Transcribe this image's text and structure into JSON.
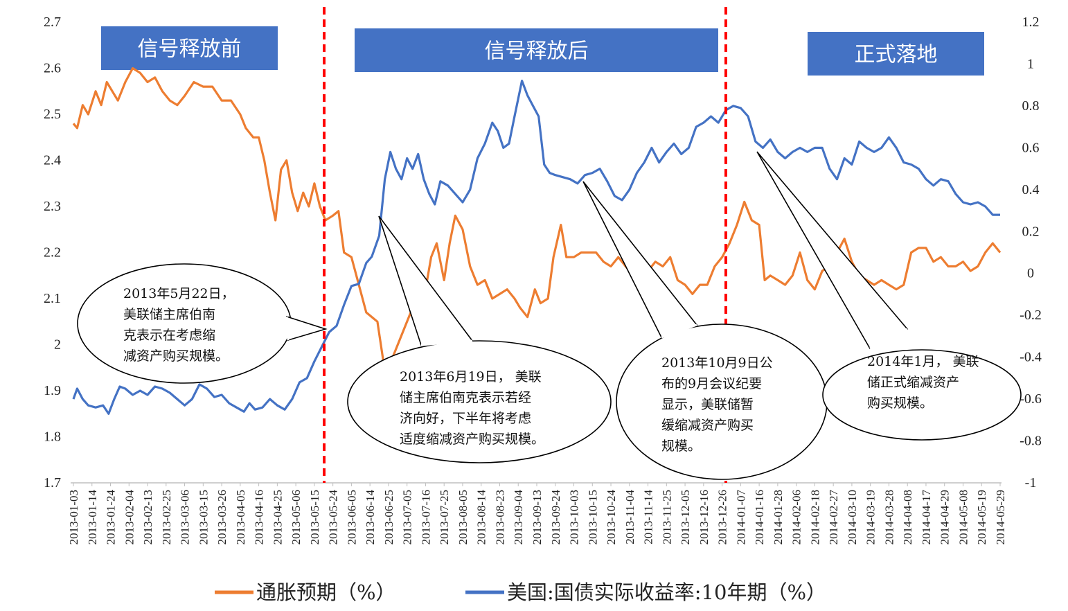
{
  "chart_data": {
    "type": "line",
    "title": "",
    "left_axis": {
      "min": 1.7,
      "max": 2.7,
      "ticks": [
        "2.7",
        "2.6",
        "2.5",
        "2.4",
        "2.3",
        "2.2",
        "2.1",
        "2",
        "1.9",
        "1.8",
        "1.7"
      ]
    },
    "right_axis": {
      "min": -1,
      "max": 1.2,
      "ticks": [
        "1.2",
        "1",
        "0.8",
        "0.6",
        "0.4",
        "0.2",
        "0",
        "-0.2",
        "-0.4",
        "-0.6",
        "-0.8",
        "-1"
      ]
    },
    "x_tick_labels": [
      "2013-01-03",
      "2013-01-14",
      "2013-01-24",
      "2013-02-04",
      "2013-02-13",
      "2013-02-25",
      "2013-03-06",
      "2013-03-15",
      "2013-03-26",
      "2013-04-05",
      "2013-04-16",
      "2013-04-25",
      "2013-05-06",
      "2013-05-15",
      "2013-05-24",
      "2013-06-05",
      "2013-06-14",
      "2013-06-25",
      "2013-07-05",
      "2013-07-16",
      "2013-07-25",
      "2013-08-05",
      "2013-08-14",
      "2013-08-23",
      "2013-09-04",
      "2013-09-13",
      "2013-09-24",
      "2013-10-03",
      "2013-10-15",
      "2013-10-24",
      "2013-11-04",
      "2013-11-14",
      "2013-11-25",
      "2013-12-05",
      "2013-12-16",
      "2013-12-26",
      "2014-01-07",
      "2014-01-16",
      "2014-01-28",
      "2014-02-06",
      "2014-02-18",
      "2014-02-27",
      "2014-03-10",
      "2014-03-19",
      "2014-03-28",
      "2014-04-08",
      "2014-04-17",
      "2014-04-29",
      "2014-05-08",
      "2014-05-19",
      "2014-05-29"
    ],
    "series": [
      {
        "name": "通胀预期（%）",
        "axis": "left",
        "color": "#ED7D31",
        "points": [
          [
            0,
            2.48
          ],
          [
            0.2,
            2.47
          ],
          [
            0.5,
            2.52
          ],
          [
            0.8,
            2.5
          ],
          [
            1.2,
            2.55
          ],
          [
            1.5,
            2.52
          ],
          [
            1.8,
            2.57
          ],
          [
            2.1,
            2.55
          ],
          [
            2.4,
            2.53
          ],
          [
            2.8,
            2.57
          ],
          [
            3.2,
            2.6
          ],
          [
            3.6,
            2.59
          ],
          [
            4,
            2.57
          ],
          [
            4.4,
            2.58
          ],
          [
            4.8,
            2.55
          ],
          [
            5.2,
            2.53
          ],
          [
            5.6,
            2.52
          ],
          [
            6,
            2.54
          ],
          [
            6.5,
            2.57
          ],
          [
            7,
            2.56
          ],
          [
            7.5,
            2.56
          ],
          [
            8,
            2.53
          ],
          [
            8.5,
            2.53
          ],
          [
            9,
            2.5
          ],
          [
            9.3,
            2.47
          ],
          [
            9.7,
            2.45
          ],
          [
            10,
            2.45
          ],
          [
            10.3,
            2.4
          ],
          [
            10.6,
            2.33
          ],
          [
            10.9,
            2.27
          ],
          [
            11.2,
            2.38
          ],
          [
            11.5,
            2.4
          ],
          [
            11.8,
            2.33
          ],
          [
            12.1,
            2.29
          ],
          [
            12.4,
            2.33
          ],
          [
            12.7,
            2.3
          ],
          [
            13,
            2.35
          ],
          [
            13.3,
            2.3
          ],
          [
            13.6,
            2.27
          ],
          [
            14,
            2.28
          ],
          [
            14.3,
            2.29
          ],
          [
            14.6,
            2.2
          ],
          [
            15,
            2.19
          ],
          [
            15.4,
            2.13
          ],
          [
            15.8,
            2.07
          ],
          [
            16.1,
            2.06
          ],
          [
            16.4,
            2.05
          ],
          [
            16.7,
            1.97
          ],
          [
            16.8,
            1.94
          ],
          [
            17.1,
            1.96
          ],
          [
            17.5,
            2.0
          ],
          [
            17.9,
            2.04
          ],
          [
            18.2,
            2.07
          ],
          [
            18.6,
            2.03
          ],
          [
            19,
            2.12
          ],
          [
            19.3,
            2.19
          ],
          [
            19.6,
            2.22
          ],
          [
            20,
            2.14
          ],
          [
            20.3,
            2.22
          ],
          [
            20.6,
            2.28
          ],
          [
            21,
            2.25
          ],
          [
            21.4,
            2.17
          ],
          [
            21.8,
            2.13
          ],
          [
            22.2,
            2.14
          ],
          [
            22.6,
            2.1
          ],
          [
            23,
            2.11
          ],
          [
            23.4,
            2.12
          ],
          [
            23.8,
            2.1
          ],
          [
            24.1,
            2.08
          ],
          [
            24.5,
            2.06
          ],
          [
            24.9,
            2.12
          ],
          [
            25.2,
            2.09
          ],
          [
            25.6,
            2.1
          ],
          [
            25.9,
            2.19
          ],
          [
            26.3,
            2.26
          ],
          [
            26.6,
            2.19
          ],
          [
            27,
            2.19
          ],
          [
            27.4,
            2.2
          ],
          [
            27.8,
            2.2
          ],
          [
            28.2,
            2.2
          ],
          [
            28.6,
            2.18
          ],
          [
            29,
            2.17
          ],
          [
            29.4,
            2.19
          ],
          [
            29.8,
            2.17
          ],
          [
            30.2,
            2.15
          ],
          [
            30.6,
            2.13
          ],
          [
            31,
            2.16
          ],
          [
            31.4,
            2.18
          ],
          [
            31.8,
            2.17
          ],
          [
            32.2,
            2.19
          ],
          [
            32.6,
            2.14
          ],
          [
            33,
            2.13
          ],
          [
            33.4,
            2.11
          ],
          [
            33.8,
            2.13
          ],
          [
            34.2,
            2.13
          ],
          [
            34.6,
            2.17
          ],
          [
            35,
            2.19
          ],
          [
            35.4,
            2.22
          ],
          [
            35.8,
            2.26
          ],
          [
            36.2,
            2.31
          ],
          [
            36.6,
            2.27
          ],
          [
            37,
            2.26
          ],
          [
            37.3,
            2.14
          ],
          [
            37.6,
            2.15
          ],
          [
            38,
            2.14
          ],
          [
            38.4,
            2.13
          ],
          [
            38.8,
            2.15
          ],
          [
            39.2,
            2.2
          ],
          [
            39.6,
            2.14
          ],
          [
            40,
            2.12
          ],
          [
            40.4,
            2.16
          ],
          [
            40.8,
            2.17
          ],
          [
            41.2,
            2.2
          ],
          [
            41.6,
            2.23
          ],
          [
            42,
            2.18
          ],
          [
            42.4,
            2.15
          ],
          [
            42.8,
            2.14
          ],
          [
            43.2,
            2.13
          ],
          [
            43.6,
            2.14
          ],
          [
            44,
            2.13
          ],
          [
            44.4,
            2.12
          ],
          [
            44.8,
            2.13
          ],
          [
            45.2,
            2.2
          ],
          [
            45.6,
            2.21
          ],
          [
            46,
            2.21
          ],
          [
            46.4,
            2.18
          ],
          [
            46.8,
            2.19
          ],
          [
            47.2,
            2.17
          ],
          [
            47.6,
            2.17
          ],
          [
            48,
            2.18
          ],
          [
            48.4,
            2.16
          ],
          [
            48.8,
            2.17
          ],
          [
            49.2,
            2.2
          ],
          [
            49.6,
            2.22
          ],
          [
            50,
            2.2
          ]
        ]
      },
      {
        "name": "美国:国债实际收益率:10年期（%）",
        "axis": "right",
        "color": "#4472C4",
        "points": [
          [
            0,
            -0.6
          ],
          [
            0.2,
            -0.55
          ],
          [
            0.5,
            -0.6
          ],
          [
            0.8,
            -0.63
          ],
          [
            1.2,
            -0.64
          ],
          [
            1.6,
            -0.63
          ],
          [
            1.9,
            -0.67
          ],
          [
            2.2,
            -0.6
          ],
          [
            2.5,
            -0.54
          ],
          [
            2.8,
            -0.55
          ],
          [
            3.2,
            -0.58
          ],
          [
            3.6,
            -0.56
          ],
          [
            4,
            -0.58
          ],
          [
            4.4,
            -0.54
          ],
          [
            4.8,
            -0.55
          ],
          [
            5.2,
            -0.57
          ],
          [
            5.6,
            -0.6
          ],
          [
            6,
            -0.63
          ],
          [
            6.4,
            -0.6
          ],
          [
            6.8,
            -0.53
          ],
          [
            7.2,
            -0.55
          ],
          [
            7.6,
            -0.59
          ],
          [
            8,
            -0.58
          ],
          [
            8.4,
            -0.62
          ],
          [
            8.8,
            -0.64
          ],
          [
            9.2,
            -0.66
          ],
          [
            9.5,
            -0.62
          ],
          [
            9.8,
            -0.65
          ],
          [
            10.2,
            -0.64
          ],
          [
            10.6,
            -0.6
          ],
          [
            11,
            -0.63
          ],
          [
            11.4,
            -0.65
          ],
          [
            11.8,
            -0.6
          ],
          [
            12.2,
            -0.52
          ],
          [
            12.6,
            -0.5
          ],
          [
            13,
            -0.42
          ],
          [
            13.4,
            -0.35
          ],
          [
            13.8,
            -0.28
          ],
          [
            14.2,
            -0.25
          ],
          [
            14.6,
            -0.15
          ],
          [
            15,
            -0.06
          ],
          [
            15.4,
            -0.05
          ],
          [
            15.8,
            0.05
          ],
          [
            16.1,
            0.08
          ],
          [
            16.5,
            0.18
          ],
          [
            16.8,
            0.45
          ],
          [
            17.1,
            0.58
          ],
          [
            17.4,
            0.5
          ],
          [
            17.7,
            0.45
          ],
          [
            18,
            0.55
          ],
          [
            18.3,
            0.5
          ],
          [
            18.6,
            0.57
          ],
          [
            18.9,
            0.45
          ],
          [
            19.2,
            0.38
          ],
          [
            19.5,
            0.33
          ],
          [
            19.8,
            0.44
          ],
          [
            20.2,
            0.42
          ],
          [
            20.6,
            0.38
          ],
          [
            21,
            0.34
          ],
          [
            21.4,
            0.4
          ],
          [
            21.8,
            0.55
          ],
          [
            22.2,
            0.62
          ],
          [
            22.6,
            0.72
          ],
          [
            22.9,
            0.68
          ],
          [
            23.2,
            0.6
          ],
          [
            23.5,
            0.62
          ],
          [
            23.8,
            0.75
          ],
          [
            24.2,
            0.92
          ],
          [
            24.5,
            0.85
          ],
          [
            24.8,
            0.8
          ],
          [
            25.1,
            0.75
          ],
          [
            25.4,
            0.52
          ],
          [
            25.7,
            0.48
          ],
          [
            26,
            0.47
          ],
          [
            26.4,
            0.46
          ],
          [
            26.8,
            0.45
          ],
          [
            27.2,
            0.43
          ],
          [
            27.6,
            0.47
          ],
          [
            28,
            0.48
          ],
          [
            28.4,
            0.5
          ],
          [
            28.8,
            0.44
          ],
          [
            29.2,
            0.37
          ],
          [
            29.6,
            0.35
          ],
          [
            30,
            0.4
          ],
          [
            30.4,
            0.48
          ],
          [
            30.8,
            0.53
          ],
          [
            31.2,
            0.6
          ],
          [
            31.6,
            0.53
          ],
          [
            32,
            0.58
          ],
          [
            32.4,
            0.62
          ],
          [
            32.8,
            0.57
          ],
          [
            33.2,
            0.6
          ],
          [
            33.6,
            0.7
          ],
          [
            34,
            0.72
          ],
          [
            34.4,
            0.75
          ],
          [
            34.8,
            0.72
          ],
          [
            35.2,
            0.78
          ],
          [
            35.6,
            0.8
          ],
          [
            36,
            0.79
          ],
          [
            36.4,
            0.75
          ],
          [
            36.8,
            0.63
          ],
          [
            37.2,
            0.6
          ],
          [
            37.6,
            0.64
          ],
          [
            38,
            0.58
          ],
          [
            38.4,
            0.55
          ],
          [
            38.8,
            0.58
          ],
          [
            39.2,
            0.6
          ],
          [
            39.6,
            0.58
          ],
          [
            40,
            0.6
          ],
          [
            40.4,
            0.6
          ],
          [
            40.8,
            0.5
          ],
          [
            41.2,
            0.45
          ],
          [
            41.6,
            0.55
          ],
          [
            42,
            0.52
          ],
          [
            42.4,
            0.63
          ],
          [
            42.8,
            0.6
          ],
          [
            43.2,
            0.58
          ],
          [
            43.6,
            0.6
          ],
          [
            44,
            0.65
          ],
          [
            44.4,
            0.6
          ],
          [
            44.8,
            0.53
          ],
          [
            45.2,
            0.52
          ],
          [
            45.6,
            0.5
          ],
          [
            46,
            0.45
          ],
          [
            46.4,
            0.42
          ],
          [
            46.8,
            0.45
          ],
          [
            47.2,
            0.44
          ],
          [
            47.6,
            0.38
          ],
          [
            48,
            0.34
          ],
          [
            48.4,
            0.33
          ],
          [
            48.8,
            0.34
          ],
          [
            49.2,
            0.32
          ],
          [
            49.6,
            0.28
          ],
          [
            50,
            0.28
          ]
        ]
      }
    ],
    "phase_labels": [
      "信号释放前",
      "信号释放后",
      "正式落地"
    ],
    "annotations": [
      {
        "lines": [
          "2013年5月22日，",
          "美联储主席伯南",
          "克表示在考虑缩",
          "减资产购买规模。"
        ]
      },
      {
        "lines": [
          "2013年6月19日，  美联",
          "储主席伯南克表示若经",
          "济向好，下半年将考虑",
          "适度缩减资产购买规模。"
        ]
      },
      {
        "lines": [
          "2013年10月9日公",
          "布的9月会议纪要",
          "显示，美联储暂",
          "缓缩减资产购买",
          "规模。"
        ]
      },
      {
        "lines": [
          "2014年1月，  美联",
          "储正式缩减资产",
          "购买规模。"
        ]
      }
    ],
    "legend": [
      "通胀预期（%）",
      "美国:国债实际收益率:10年期（%）"
    ]
  }
}
